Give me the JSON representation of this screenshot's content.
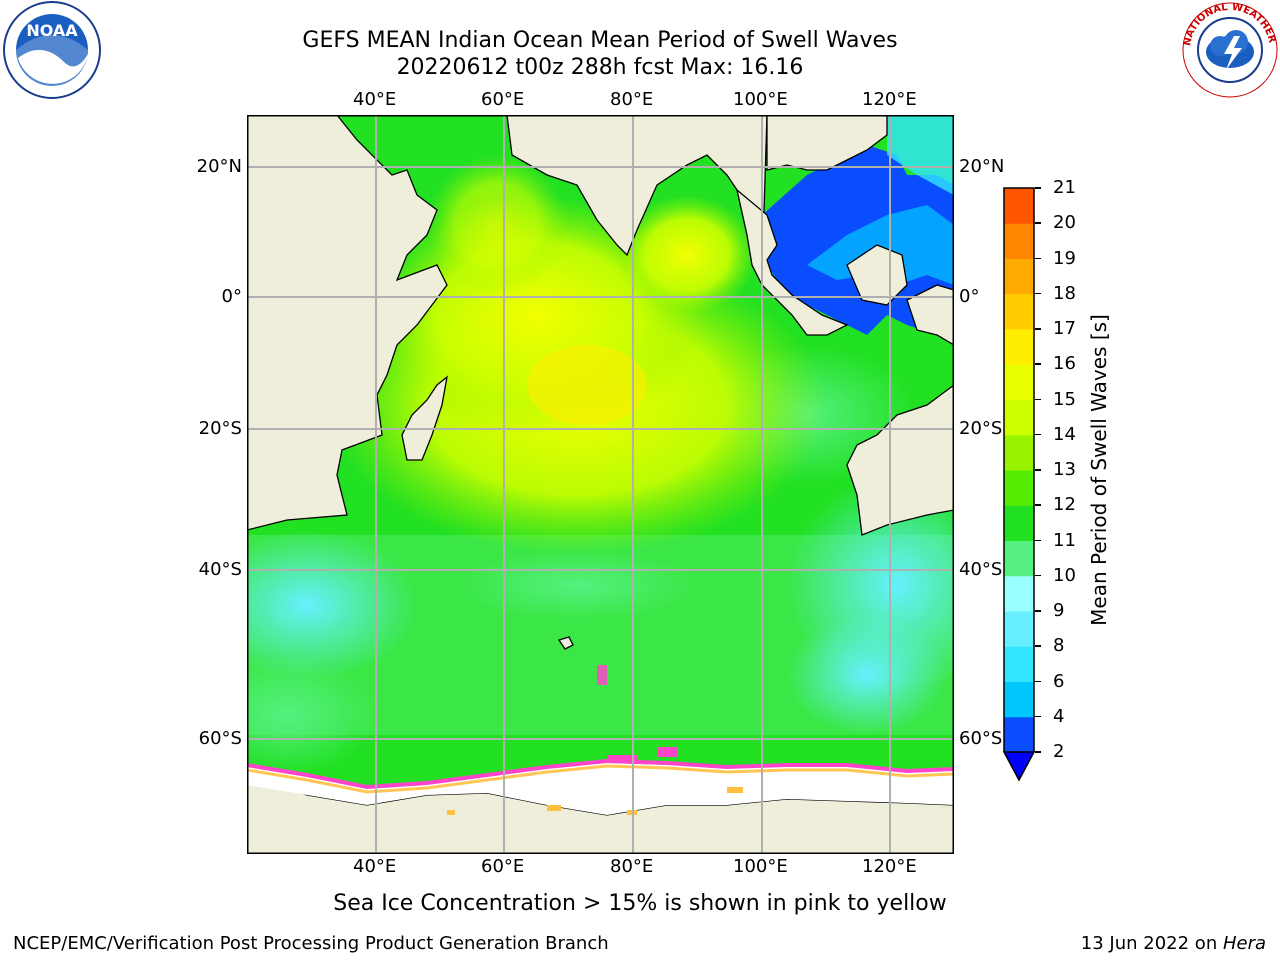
{
  "title": {
    "line1": "GEFS MEAN Indian Ocean Mean Period of Swell Waves",
    "line2": "20220612 t00z 288h fcst   Max: 16.16"
  },
  "axes": {
    "lon_labels": [
      "40°E",
      "60°E",
      "80°E",
      "100°E",
      "120°E"
    ],
    "lat_labels": [
      "20°N",
      "0°",
      "20°S",
      "40°S",
      "60°S"
    ]
  },
  "colorbar": {
    "label": "Mean Period of Swell Waves [s]",
    "ticks": [
      "2",
      "4",
      "6",
      "8",
      "9",
      "10",
      "11",
      "12",
      "13",
      "14",
      "15",
      "16",
      "17",
      "18",
      "19",
      "20",
      "21"
    ],
    "colors": [
      "#0a4dff",
      "#00c8ff",
      "#33e6ff",
      "#66f0ff",
      "#99ffff",
      "#55f080",
      "#22e022",
      "#55ee00",
      "#99f200",
      "#ccff00",
      "#e8ff00",
      "#ffee00",
      "#ffcc00",
      "#ffaa00",
      "#ff8800",
      "#ff5500",
      "#ff2200",
      "#ff0000"
    ],
    "extend_color": "#0000ff"
  },
  "note": "Sea Ice Concentration > 15% is shown in pink to yellow",
  "footer": {
    "left": "NCEP/EMC/Verification Post Processing Product Generation Branch",
    "date": "13 Jun 2022 on ",
    "machine": "Hera"
  },
  "logos": {
    "noaa_text": "NOAA",
    "nws_text": "NATIONAL WEATHER SERVICE"
  }
}
